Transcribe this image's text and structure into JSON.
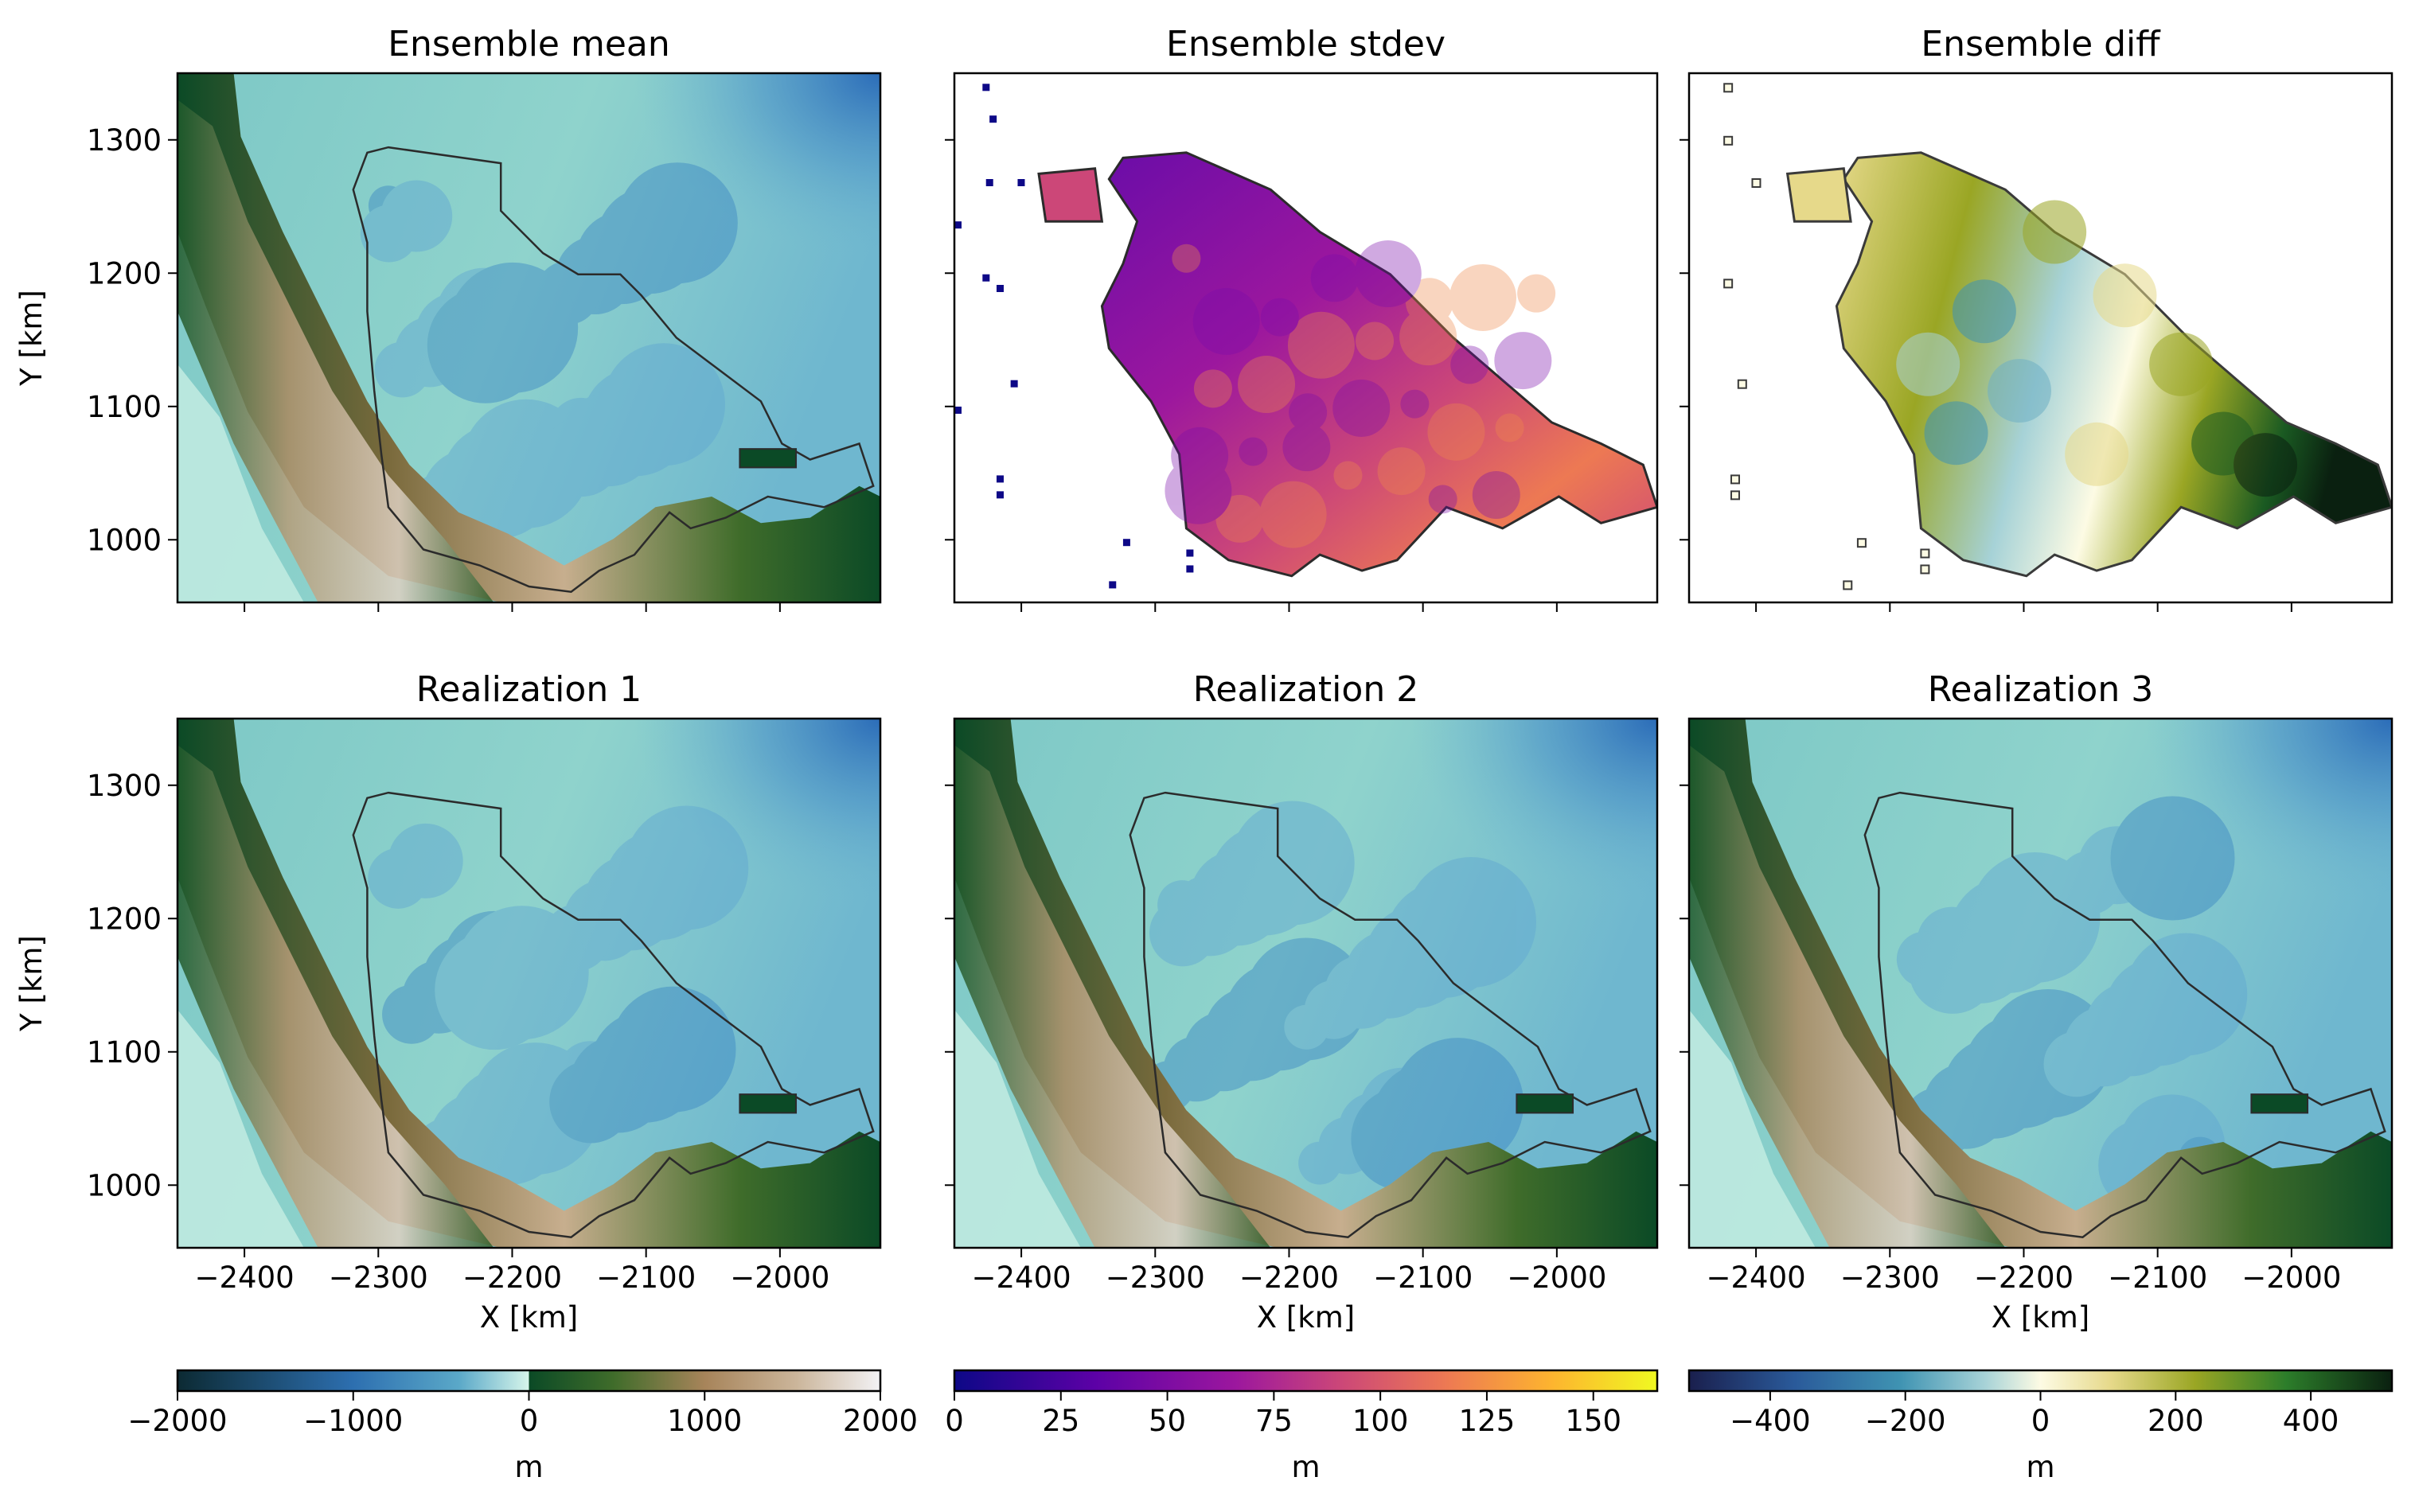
{
  "chart_data": [
    {
      "type": "heatmap",
      "title": "Ensemble mean",
      "ylabel": "Y [km]",
      "xlabel": "",
      "xlim": [
        -2450,
        -1925
      ],
      "ylim": [
        953,
        1350
      ],
      "xticks": [
        -2400,
        -2300,
        -2200,
        -2100,
        -2000
      ],
      "yticks": [
        1000,
        1100,
        1200,
        1300
      ],
      "show_xticklabels": false,
      "show_yticklabels": true,
      "colormap": "topo",
      "value_range": [
        -2000,
        2000
      ],
      "has_outline": true
    },
    {
      "type": "heatmap",
      "title": "Ensemble stdev",
      "xlabel": "",
      "ylabel": "",
      "xlim": [
        -2450,
        -1925
      ],
      "ylim": [
        953,
        1350
      ],
      "xticks": [
        -2400,
        -2300,
        -2200,
        -2100,
        -2000
      ],
      "yticks": [
        1000,
        1100,
        1200,
        1300
      ],
      "show_xticklabels": false,
      "show_yticklabels": false,
      "colormap": "plasma",
      "value_range": [
        0,
        165
      ],
      "has_outline": true
    },
    {
      "type": "heatmap",
      "title": "Ensemble diff",
      "xlabel": "",
      "ylabel": "",
      "xlim": [
        -2450,
        -1925
      ],
      "ylim": [
        953,
        1350
      ],
      "xticks": [
        -2400,
        -2300,
        -2200,
        -2100,
        -2000
      ],
      "yticks": [
        1000,
        1100,
        1200,
        1300
      ],
      "show_xticklabels": false,
      "show_yticklabels": false,
      "colormap": "diverging-blue-green",
      "value_range": [
        -520,
        520
      ],
      "has_outline": true
    },
    {
      "type": "heatmap",
      "title": "Realization 1",
      "xlabel": "X [km]",
      "ylabel": "Y [km]",
      "xlim": [
        -2450,
        -1925
      ],
      "ylim": [
        953,
        1350
      ],
      "xticks": [
        -2400,
        -2300,
        -2200,
        -2100,
        -2000
      ],
      "yticks": [
        1000,
        1100,
        1200,
        1300
      ],
      "show_xticklabels": true,
      "show_yticklabels": true,
      "colormap": "topo",
      "value_range": [
        -2000,
        2000
      ],
      "has_outline": true
    },
    {
      "type": "heatmap",
      "title": "Realization 2",
      "xlabel": "X [km]",
      "ylabel": "",
      "xlim": [
        -2450,
        -1925
      ],
      "ylim": [
        953,
        1350
      ],
      "xticks": [
        -2400,
        -2300,
        -2200,
        -2100,
        -2000
      ],
      "yticks": [
        1000,
        1100,
        1200,
        1300
      ],
      "show_xticklabels": true,
      "show_yticklabels": false,
      "colormap": "topo",
      "value_range": [
        -2000,
        2000
      ],
      "has_outline": true
    },
    {
      "type": "heatmap",
      "title": "Realization 3",
      "xlabel": "X [km]",
      "ylabel": "",
      "xlim": [
        -2450,
        -1925
      ],
      "ylim": [
        953,
        1350
      ],
      "xticks": [
        -2400,
        -2300,
        -2200,
        -2100,
        -2000
      ],
      "yticks": [
        1000,
        1100,
        1200,
        1300
      ],
      "show_xticklabels": true,
      "show_yticklabels": false,
      "colormap": "topo",
      "value_range": [
        -2000,
        2000
      ],
      "has_outline": true
    }
  ],
  "colorbars": [
    {
      "name": "elevation",
      "label": "m",
      "range": [
        -2000,
        2000
      ],
      "ticks": [
        -2000,
        -1000,
        0,
        1000,
        2000
      ],
      "tick_labels": [
        "−2000",
        "−1000",
        "0",
        "1000",
        "2000"
      ],
      "stops": [
        [
          0.0,
          "#0c2a33"
        ],
        [
          0.25,
          "#2d6fb0"
        ],
        [
          0.4,
          "#5aa8c8"
        ],
        [
          0.5,
          "#d6f5ea"
        ],
        [
          0.5,
          "#0b4a26"
        ],
        [
          0.62,
          "#3f6c2a"
        ],
        [
          0.75,
          "#a7845a"
        ],
        [
          0.88,
          "#cbb59a"
        ],
        [
          1.0,
          "#f2f2f5"
        ]
      ]
    },
    {
      "name": "stdev",
      "label": "m",
      "range": [
        0,
        165
      ],
      "ticks": [
        0,
        25,
        50,
        75,
        100,
        125,
        150
      ],
      "tick_labels": [
        "0",
        "25",
        "50",
        "75",
        "100",
        "125",
        "150"
      ],
      "stops": [
        [
          0.0,
          "#0d0887"
        ],
        [
          0.2,
          "#5c01a6"
        ],
        [
          0.4,
          "#9c179e"
        ],
        [
          0.55,
          "#cc4778"
        ],
        [
          0.7,
          "#ed7953"
        ],
        [
          0.85,
          "#fdb42f"
        ],
        [
          1.0,
          "#f0f921"
        ]
      ]
    },
    {
      "name": "diff",
      "label": "m",
      "range": [
        -520,
        520
      ],
      "ticks": [
        -400,
        -200,
        0,
        200,
        400
      ],
      "tick_labels": [
        "−400",
        "−200",
        "0",
        "200",
        "400"
      ],
      "stops": [
        [
          0.0,
          "#1a1f4d"
        ],
        [
          0.15,
          "#2a5a9a"
        ],
        [
          0.3,
          "#3f93b2"
        ],
        [
          0.42,
          "#a6d2d7"
        ],
        [
          0.5,
          "#fdfbe4"
        ],
        [
          0.6,
          "#e6d98a"
        ],
        [
          0.72,
          "#9aa624"
        ],
        [
          0.85,
          "#2c7d2a"
        ],
        [
          1.0,
          "#0a2010"
        ]
      ]
    }
  ]
}
